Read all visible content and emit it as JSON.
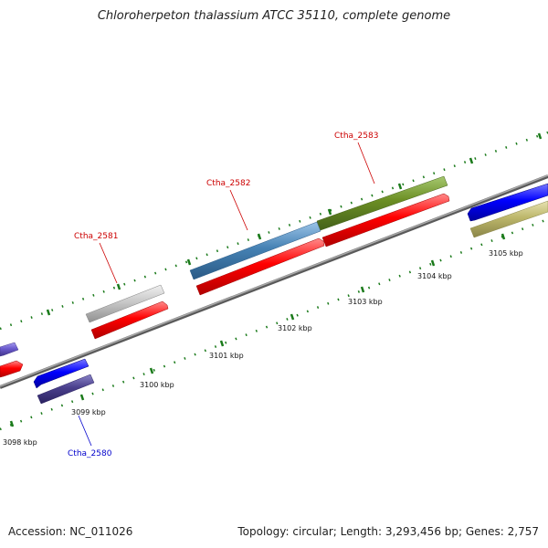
{
  "title": "Chloroherpeton thalassium ATCC 35110, complete genome",
  "accession": "Accession: NC_011026",
  "summary": "Topology: circular; Length: 3,293,456 bp; Genes: 2,757",
  "scale_labels": [
    "3098 kbp",
    "3099 kbp",
    "3100 kbp",
    "3101 kbp",
    "3102 kbp",
    "3103 kbp",
    "3104 kbp",
    "3105 kbp"
  ],
  "gene_labels": {
    "ctha_2580": "Ctha_2580",
    "ctha_2581": "Ctha_2581",
    "ctha_2582": "Ctha_2582",
    "ctha_2583": "Ctha_2583"
  },
  "colors": {
    "cds_red": "#ff0000",
    "label_red": "#cc0000",
    "label_blue": "#0000cc",
    "tick_green": "#1a7a1a",
    "backbone": "#888888"
  }
}
